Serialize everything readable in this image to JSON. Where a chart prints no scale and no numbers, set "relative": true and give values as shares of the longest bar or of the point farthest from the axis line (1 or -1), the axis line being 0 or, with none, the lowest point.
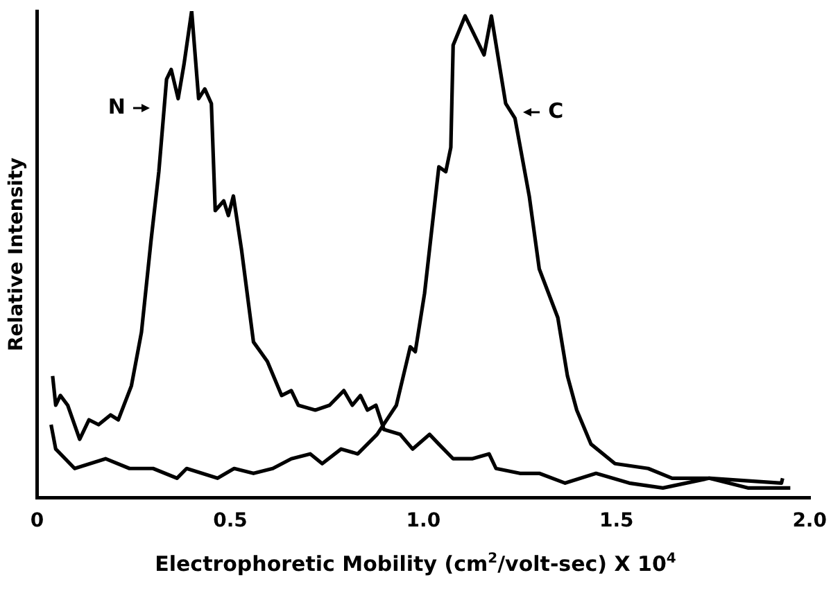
{
  "chart_data": {
    "type": "line",
    "relative": true,
    "xlabel": "Electrophoretic Mobility (cm$^{2}$/volt-sec) X 10$^{4}$",
    "ylabel": "Relative Intensity",
    "xlim": [
      0,
      2.0
    ],
    "xticks": [
      {
        "value": 0,
        "label": "0"
      },
      {
        "value": 0.5,
        "label": "0.5"
      },
      {
        "value": 1,
        "label": "1.0"
      },
      {
        "value": 1.5,
        "label": "1.5"
      },
      {
        "value": 2,
        "label": "2.0"
      }
    ],
    "tick_labels": "x",
    "series": [
      {
        "name": "N",
        "color": "#000000",
        "x": [
          0.04,
          0.048,
          0.06,
          0.079,
          0.11,
          0.134,
          0.159,
          0.19,
          0.21,
          0.244,
          0.27,
          0.295,
          0.315,
          0.335,
          0.347,
          0.365,
          0.38,
          0.4,
          0.418,
          0.434,
          0.451,
          0.461,
          0.483,
          0.495,
          0.508,
          0.529,
          0.56,
          0.596,
          0.633,
          0.658,
          0.676,
          0.72,
          0.757,
          0.794,
          0.816,
          0.837,
          0.855,
          0.877,
          0.898,
          0.94,
          0.972,
          1.016,
          1.04,
          1.077,
          1.126,
          1.17,
          1.188,
          1.25,
          1.3,
          1.367,
          1.447,
          1.533,
          1.62,
          1.74,
          1.84,
          1.95
        ],
        "values": [
          0.25,
          0.19,
          0.21,
          0.19,
          0.12,
          0.16,
          0.15,
          0.17,
          0.16,
          0.23,
          0.34,
          0.53,
          0.67,
          0.86,
          0.88,
          0.82,
          0.89,
          1,
          0.82,
          0.84,
          0.81,
          0.59,
          0.61,
          0.58,
          0.62,
          0.51,
          0.32,
          0.28,
          0.21,
          0.22,
          0.19,
          0.18,
          0.19,
          0.22,
          0.19,
          0.21,
          0.18,
          0.19,
          0.14,
          0.13,
          0.1,
          0.13,
          0.11,
          0.08,
          0.08,
          0.09,
          0.06,
          0.05,
          0.05,
          0.03,
          0.05,
          0.03,
          0.02,
          0.04,
          0.02,
          0.02
        ]
      },
      {
        "name": "C",
        "color": "#000000",
        "x": [
          0.036,
          0.048,
          0.097,
          0.177,
          0.239,
          0.3,
          0.362,
          0.387,
          0.467,
          0.51,
          0.56,
          0.61,
          0.658,
          0.707,
          0.738,
          0.787,
          0.83,
          0.88,
          0.93,
          0.954,
          0.966,
          0.979,
          1.003,
          1.04,
          1.058,
          1.071,
          1.077,
          1.108,
          1.157,
          1.176,
          1.213,
          1.237,
          1.274,
          1.3,
          1.348,
          1.373,
          1.397,
          1.434,
          1.496,
          1.582,
          1.644,
          1.742,
          1.927,
          1.93
        ],
        "values": [
          0.15,
          0.1,
          0.06,
          0.08,
          0.06,
          0.06,
          0.04,
          0.06,
          0.04,
          0.06,
          0.05,
          0.06,
          0.08,
          0.09,
          0.07,
          0.1,
          0.09,
          0.13,
          0.19,
          0.27,
          0.31,
          0.3,
          0.42,
          0.68,
          0.67,
          0.72,
          0.93,
          0.99,
          0.91,
          0.99,
          0.81,
          0.78,
          0.62,
          0.47,
          0.37,
          0.25,
          0.18,
          0.11,
          0.07,
          0.06,
          0.04,
          0.04,
          0.03,
          0.04
        ]
      }
    ]
  }
}
